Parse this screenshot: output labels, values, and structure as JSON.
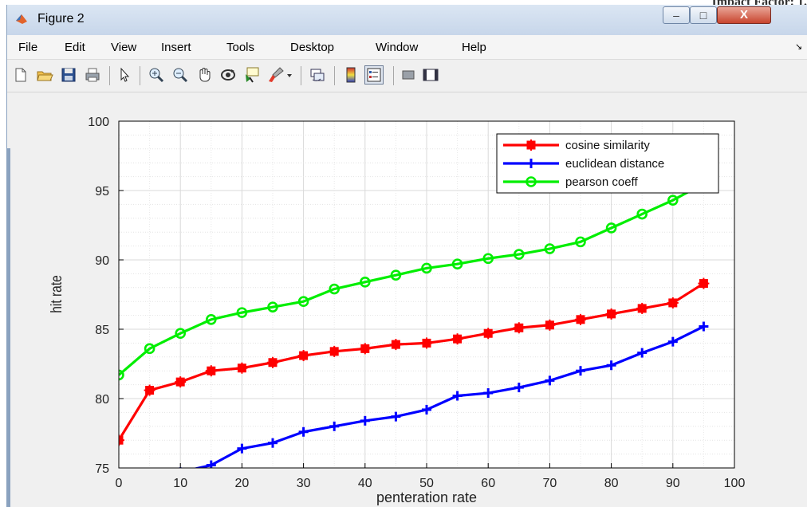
{
  "page_header": "Impact Factor: 1.",
  "window": {
    "title": "Figure 2",
    "icon": "matlab-logo-icon",
    "minimize_glyph": "–",
    "maximize_glyph": "□",
    "close_glyph": "X"
  },
  "menu": {
    "items": [
      "File",
      "Edit",
      "View",
      "Insert",
      "Tools",
      "Desktop",
      "Window",
      "Help"
    ],
    "overflow_glyph": "↘"
  },
  "toolbar": {
    "icons": [
      "new-figure-icon",
      "open-file-icon",
      "save-icon",
      "print-icon",
      "pointer-icon",
      "zoom-in-icon",
      "zoom-out-icon",
      "pan-hand-icon",
      "rotate-3d-icon",
      "data-cursor-icon",
      "brush-icon",
      "brush-dropdown-icon",
      "link-plot-icon",
      "insert-colorbar-icon",
      "insert-legend-icon",
      "hide-plot-tools-icon",
      "show-plot-tools-icon"
    ]
  },
  "colors": {
    "cosine": "#ff0000",
    "euclidean": "#0000ff",
    "pearson": "#00ee00"
  },
  "chart_data": {
    "type": "line",
    "title": "",
    "xlabel": "penteration rate",
    "ylabel": "hit rate",
    "xlim": [
      0,
      100
    ],
    "ylim": [
      75,
      100
    ],
    "xticks": [
      0,
      10,
      20,
      30,
      40,
      50,
      60,
      70,
      80,
      90,
      100
    ],
    "yticks": [
      75,
      80,
      85,
      90,
      95,
      100
    ],
    "grid": true,
    "minor_grid_y": true,
    "legend_position": "top-right",
    "series": [
      {
        "name": "cosine similarity",
        "color": "#ff0000",
        "marker": "asterisk",
        "x": [
          0,
          5,
          10,
          15,
          20,
          25,
          30,
          35,
          40,
          45,
          50,
          55,
          60,
          65,
          70,
          75,
          80,
          85,
          90,
          95
        ],
        "y": [
          77.0,
          80.6,
          81.2,
          82.0,
          82.2,
          82.6,
          83.1,
          83.4,
          83.6,
          83.9,
          84.0,
          84.3,
          84.7,
          85.1,
          85.3,
          85.7,
          86.1,
          86.5,
          86.9,
          88.3
        ]
      },
      {
        "name": "euclidean distance",
        "color": "#0000ff",
        "marker": "plus",
        "x": [
          10,
          15,
          20,
          25,
          30,
          35,
          40,
          45,
          50,
          55,
          60,
          65,
          70,
          75,
          80,
          85,
          90,
          95
        ],
        "y": [
          74.7,
          75.2,
          76.4,
          76.8,
          77.6,
          78.0,
          78.4,
          78.7,
          79.2,
          80.2,
          80.4,
          80.8,
          81.3,
          82.0,
          82.4,
          83.3,
          84.1,
          85.2
        ]
      },
      {
        "name": "pearson coeff",
        "color": "#00ee00",
        "marker": "circle",
        "x": [
          0,
          5,
          10,
          15,
          20,
          25,
          30,
          35,
          40,
          45,
          50,
          55,
          60,
          65,
          70,
          75,
          80,
          85,
          90,
          95
        ],
        "y": [
          81.7,
          83.6,
          84.7,
          85.7,
          86.2,
          86.6,
          87.0,
          87.9,
          88.4,
          88.9,
          89.4,
          89.7,
          90.1,
          90.4,
          90.8,
          91.3,
          92.3,
          93.3,
          94.3,
          95.5
        ]
      }
    ]
  }
}
